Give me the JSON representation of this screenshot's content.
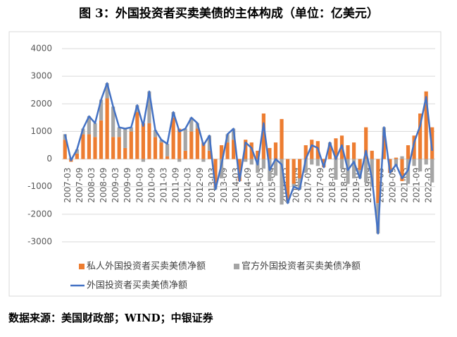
{
  "title": "图 3：外国投资者买卖美债的主体构成（单位：亿美元）",
  "source": "数据来源：美国财政部；WIND；中银证券",
  "chart_data": {
    "type": "combo",
    "categories": [
      "2007-03",
      null,
      "2007-09",
      null,
      "2008-03",
      null,
      "2008-09",
      null,
      "2009-03",
      null,
      "2009-09",
      null,
      "2010-03",
      null,
      "2010-09",
      null,
      "2011-03",
      null,
      "2011-09",
      null,
      "2012-03",
      null,
      "2012-09",
      null,
      "2013-03",
      null,
      "2013-09",
      null,
      "2014-03",
      null,
      "2014-09",
      null,
      "2015-03",
      null,
      "2015-09",
      null,
      "2016-03",
      null,
      "2016-09",
      null,
      "2017-03",
      null,
      "2017-09",
      null,
      "2018-03",
      null,
      "2018-09",
      null,
      "2019-03",
      null,
      "2019-09",
      null,
      "2020-03",
      null,
      "2020-09",
      null,
      "2021-03",
      null,
      "2021-09",
      null,
      "2022-03",
      null
    ],
    "series": [
      {
        "name": "私人外国投资者买卖美债净额",
        "kind": "bar",
        "color": "#ED7D31",
        "values": [
          700,
          -100,
          200,
          900,
          900,
          800,
          1400,
          2200,
          800,
          800,
          400,
          1000,
          1700,
          1300,
          1300,
          800,
          600,
          100,
          1500,
          1100,
          300,
          1000,
          1100,
          600,
          300,
          -1000,
          500,
          600,
          700,
          -800,
          700,
          600,
          300,
          1650,
          400,
          600,
          1450,
          -1500,
          -900,
          -700,
          500,
          700,
          650,
          -300,
          500,
          750,
          850,
          500,
          600,
          -400,
          1150,
          300,
          -1600,
          850,
          -500,
          50,
          -800,
          500,
          850,
          1650,
          2450,
          1150
        ]
      },
      {
        "name": "官方外国投资者买卖美债净额",
        "kind": "bar",
        "color": "#A5A5A5",
        "values": [
          200,
          50,
          150,
          200,
          650,
          500,
          750,
          550,
          1100,
          350,
          700,
          150,
          250,
          -100,
          1150,
          250,
          100,
          450,
          200,
          -100,
          800,
          500,
          200,
          -100,
          550,
          -100,
          -700,
          300,
          400,
          0,
          -100,
          -200,
          -500,
          -350,
          -800,
          -600,
          -1650,
          -100,
          -100,
          -400,
          -500,
          -200,
          -250,
          0,
          100,
          -750,
          -350,
          -900,
          -700,
          -300,
          -850,
          -1000,
          -1100,
          300,
          0,
          -250,
          100,
          -900,
          -250,
          -450,
          -200,
          -850
        ]
      },
      {
        "name": "外国投资者买卖美债净额",
        "kind": "line",
        "color": "#4472C4",
        "values": [
          900,
          -50,
          350,
          1100,
          1550,
          1300,
          2150,
          2750,
          1900,
          1150,
          1100,
          1150,
          1950,
          1200,
          2450,
          1050,
          700,
          550,
          1700,
          1000,
          1100,
          1500,
          1300,
          500,
          850,
          -1100,
          -200,
          900,
          1100,
          -800,
          600,
          400,
          -200,
          1300,
          -400,
          0,
          -200,
          -1600,
          -1000,
          -1100,
          0,
          500,
          400,
          -300,
          600,
          0,
          500,
          -400,
          -100,
          -700,
          300,
          -700,
          -2700,
          1150,
          -500,
          -200,
          -700,
          -400,
          600,
          1200,
          2250,
          300
        ]
      }
    ],
    "ylim": [
      -3000,
      4000
    ],
    "yticks": [
      -3000,
      -2000,
      -1000,
      0,
      1000,
      2000,
      3000,
      4000
    ],
    "grid": true
  }
}
